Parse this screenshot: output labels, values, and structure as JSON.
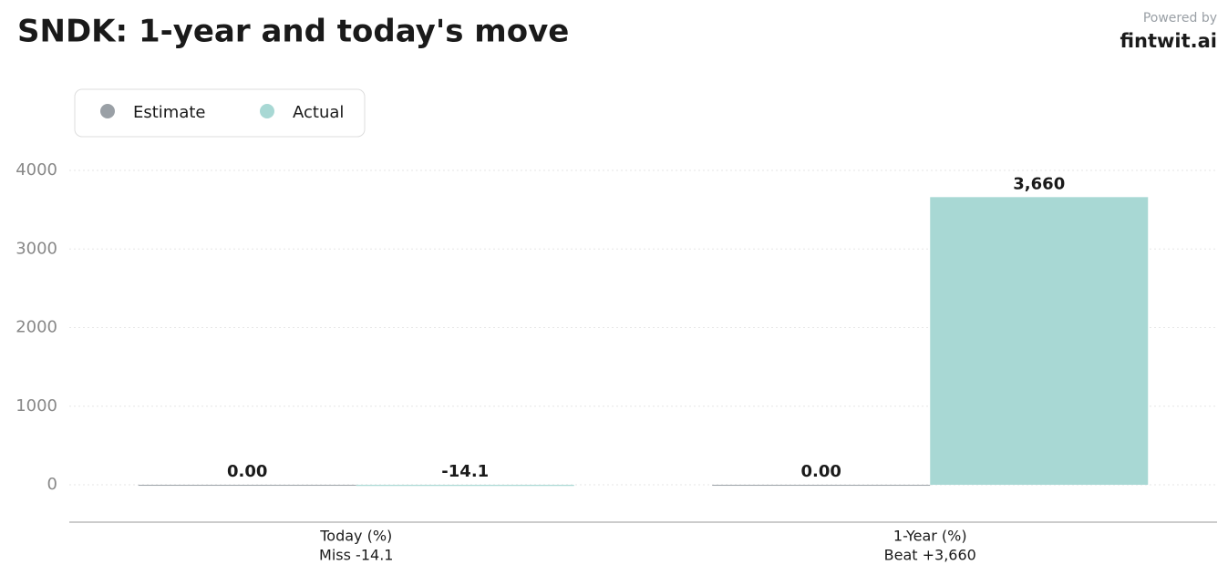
{
  "brand": {
    "powered_by": "Powered by",
    "name": "fintwit.ai"
  },
  "chart_data": {
    "type": "bar",
    "title": "SNDK: 1-year and today's move",
    "categories": [
      "Today (%)",
      "1-Year (%)"
    ],
    "category_notes": [
      "Miss -14.1",
      "Beat +3,660"
    ],
    "series": [
      {
        "name": "Estimate",
        "color": "#9aa0a6",
        "values": [
          0,
          0
        ],
        "value_labels": [
          "0.00",
          "0.00"
        ]
      },
      {
        "name": "Actual",
        "color": "#a8d8d4",
        "values": [
          -14.1,
          3660
        ],
        "value_labels": [
          "-14.1",
          "3,660"
        ]
      }
    ],
    "ylim": [
      -475,
      4400
    ],
    "yticks": [
      0,
      1000,
      2000,
      3000,
      4000
    ],
    "grid": true,
    "legend": "top-left"
  }
}
